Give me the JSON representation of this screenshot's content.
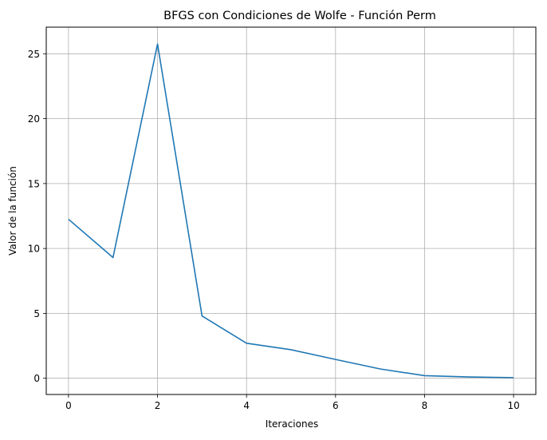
{
  "chart_data": {
    "type": "line",
    "title": "BFGS con Condiciones de Wolfe - Función Perm",
    "xlabel": "Iteraciones",
    "ylabel": "Valor de la función",
    "x": [
      0,
      1,
      2,
      3,
      4,
      5,
      6,
      7,
      8,
      9,
      10
    ],
    "series": [
      {
        "values": [
          12.25,
          9.3,
          25.75,
          4.8,
          2.7,
          2.2,
          1.45,
          0.72,
          0.2,
          0.1,
          0.05
        ],
        "color": "#1f77b4"
      }
    ],
    "xlim": [
      -0.5,
      10.5
    ],
    "ylim": [
      -1.25,
      27.05
    ],
    "xticks": [
      0,
      2,
      4,
      6,
      8,
      10
    ],
    "yticks": [
      0,
      5,
      10,
      15,
      20,
      25
    ],
    "grid": true,
    "legend": "none"
  }
}
